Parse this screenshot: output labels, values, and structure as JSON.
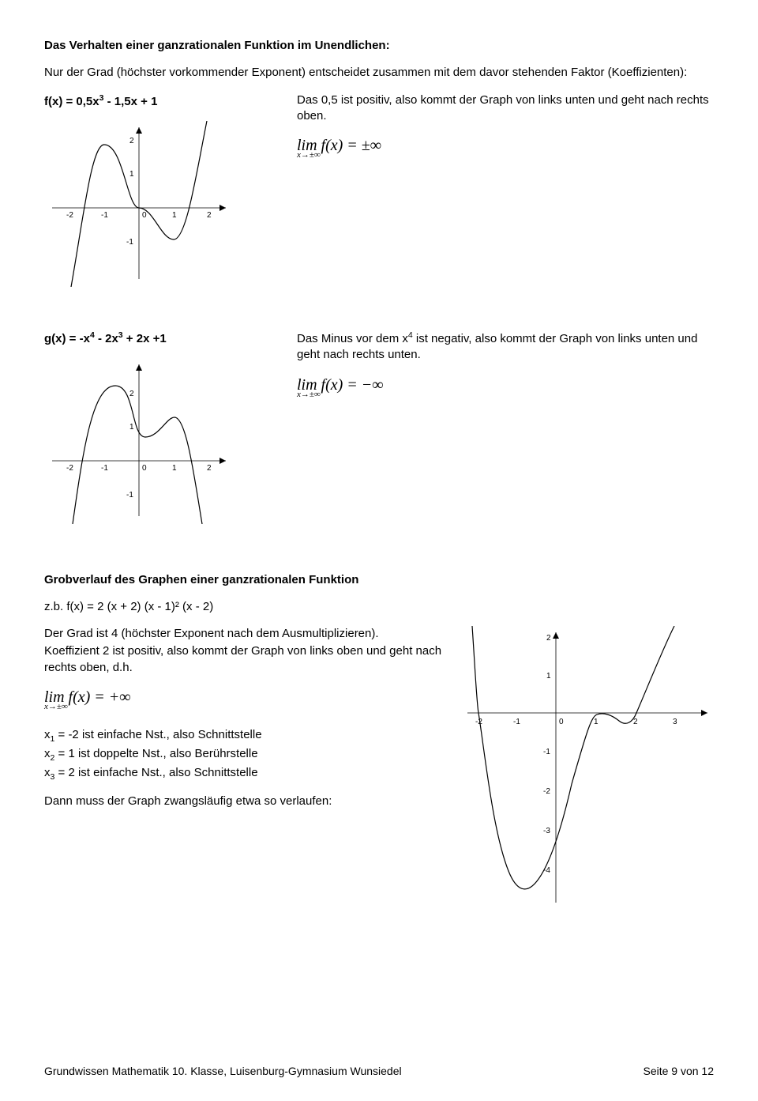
{
  "title": "Das Verhalten einer ganzrationalen Funktion im Unendlichen:",
  "intro": "Nur der Grad (höchster vorkommender Exponent) entscheidet zusammen mit dem davor stehenden Faktor (Koeffizienten):",
  "ex1": {
    "func_html": "f(x) = 0,5x<sup>3</sup> - 1,5x + 1",
    "desc": "Das 0,5 ist positiv, also kommt der Graph von links unten und geht nach rechts oben.",
    "limit": "lim f(x) = ±∞",
    "limit_sub": "x→±∞",
    "chart": {
      "background": "#ffffff",
      "axis_color": "#000000",
      "curve_color": "#000000",
      "xrange": [
        -2.4,
        2.4
      ],
      "yrange": [
        -1.6,
        2.4
      ],
      "xticks": [
        -2,
        -1,
        0,
        1,
        2
      ],
      "yticks": [
        -1,
        0,
        1,
        2
      ]
    }
  },
  "ex2": {
    "func_html": "g(x) = -x<sup>4</sup> - 2x<sup>3</sup> + 2x +1",
    "desc_html": "Das Minus vor dem x<sup>4</sup> ist negativ, also kommt der Graph von links unten und geht nach rechts unten.",
    "limit": "lim f(x) = −∞",
    "limit_sub": "x→±∞",
    "chart": {
      "background": "#ffffff",
      "axis_color": "#000000",
      "curve_color": "#000000",
      "xrange": [
        -2.4,
        2.4
      ],
      "yrange": [
        -1.6,
        2.4
      ],
      "xticks": [
        -2,
        -1,
        0,
        1,
        2
      ],
      "yticks": [
        -1,
        0,
        1,
        2
      ]
    }
  },
  "grob": {
    "heading": "Grobverlauf des Graphen einer ganzrationalen Funktion",
    "example": "z.b.  f(x) = 2 (x + 2) (x - 1)² (x - 2)",
    "line1": "Der Grad ist 4 (höchster Exponent nach dem Ausmultiplizieren).",
    "line2": "Koeffizient 2 ist positiv, also kommt der Graph von links oben und geht nach rechts oben, d.h.",
    "limit": "lim f(x) = +∞",
    "limit_sub": "x→±∞",
    "nst1_html": "x<sub>1</sub> = -2 ist einfache Nst., also Schnittstelle",
    "nst2_html": "x<sub>2</sub> = 1  ist doppelte Nst., also Berührstelle",
    "nst3_html": "x<sub>3</sub> = 2 ist einfache Nst., also Schnittstelle",
    "final": "Dann muss der Graph zwangsläufig etwa so verlaufen:",
    "chart": {
      "background": "#ffffff",
      "axis_color": "#000000",
      "curve_color": "#000000",
      "xrange": [
        -2.4,
        3.4
      ],
      "yrange": [
        -4.6,
        2.6
      ],
      "xticks": [
        -2,
        -1,
        0,
        1,
        2,
        3
      ],
      "yticks": [
        -4,
        -3,
        -2,
        -1,
        0,
        1,
        2
      ]
    }
  },
  "footer": {
    "left": "Grundwissen Mathematik 10. Klasse, Luisenburg-Gymnasium Wunsiedel",
    "right": "Seite 9 von 12"
  }
}
